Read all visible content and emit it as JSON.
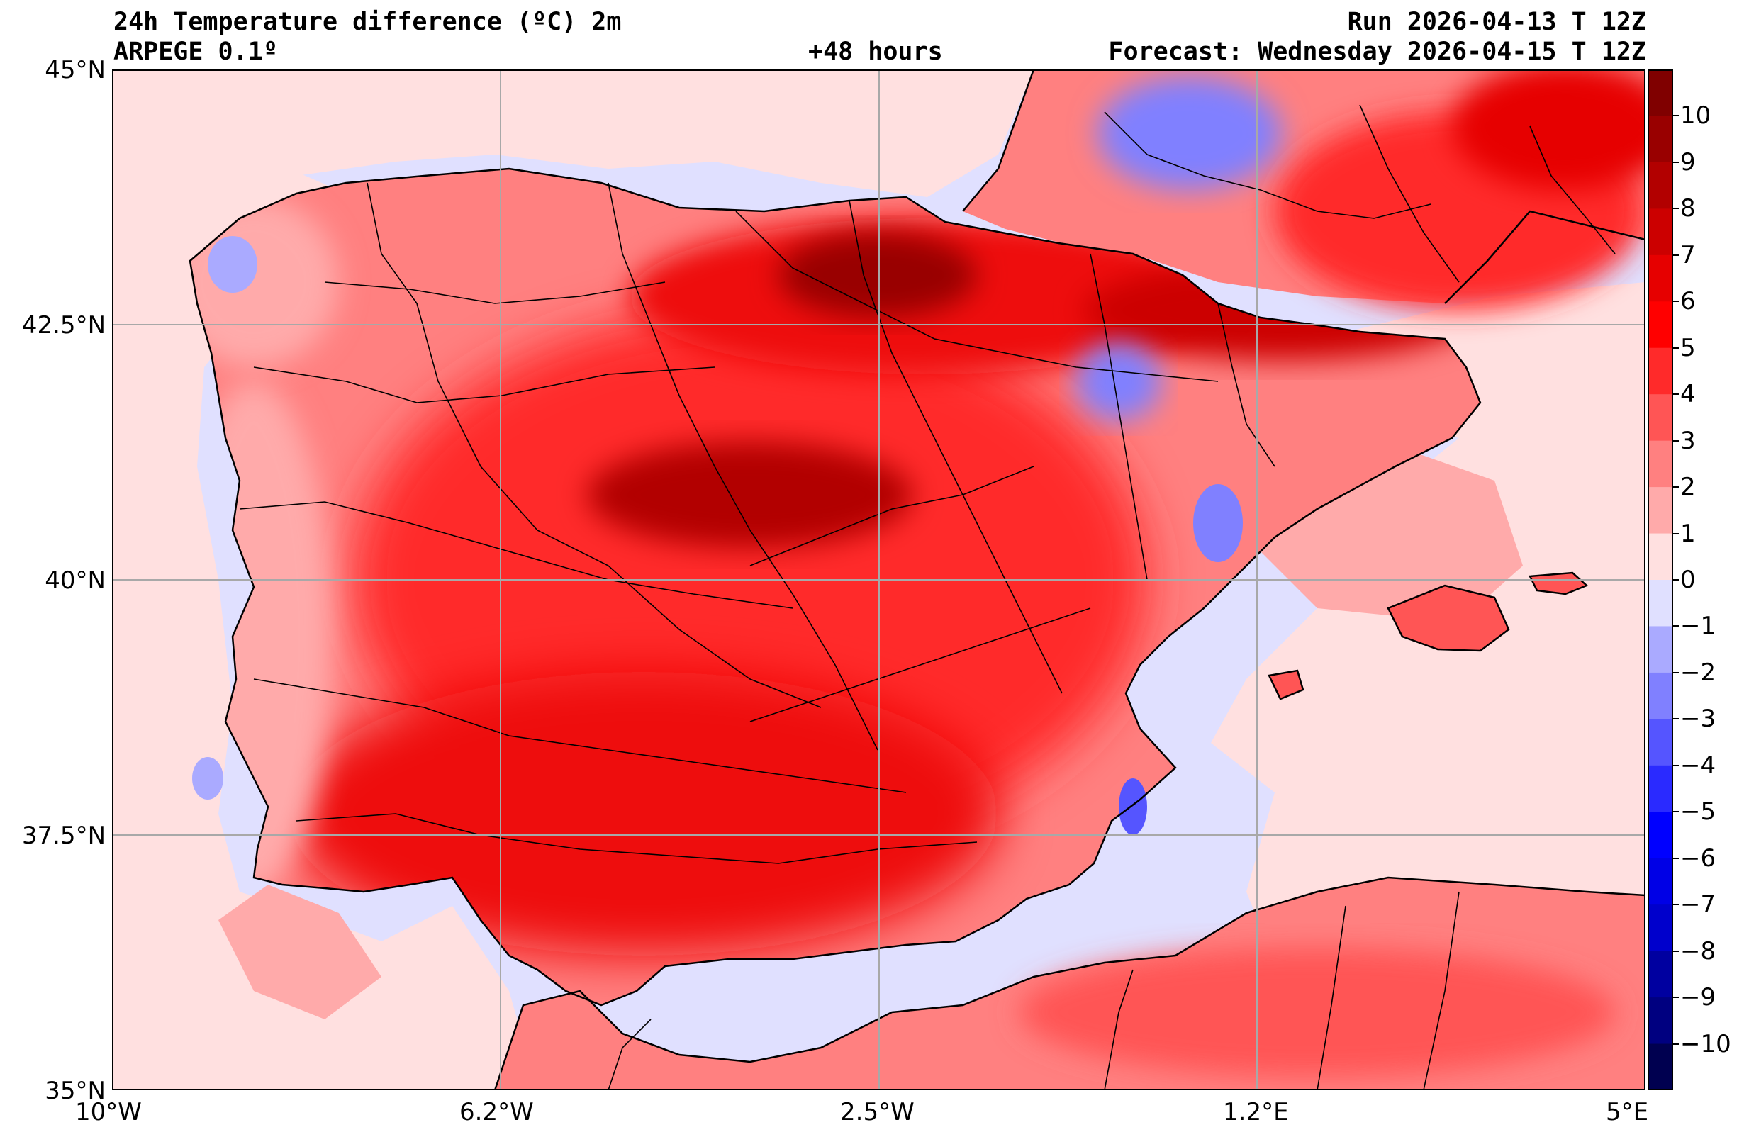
{
  "header": {
    "title": "24h Temperature difference (ºC) 2m",
    "model": "ARPEGE 0.1º",
    "lead_time": "+48 hours",
    "run": "Run 2026-04-13 T 12Z",
    "forecast": "Forecast: Wednesday 2026-04-15 T 12Z"
  },
  "map": {
    "lat_labels": [
      "45°N",
      "42.5°N",
      "40°N",
      "37.5°N",
      "35°N"
    ],
    "lon_labels": [
      "10°W",
      "6.2°W",
      "2.5°W",
      "1.2°E",
      "5°E"
    ],
    "lat_range": [
      35,
      45
    ],
    "lon_range": [
      -10,
      5
    ],
    "gridlines": true
  },
  "colorbar": {
    "labels": [
      "10",
      "9",
      "8",
      "7",
      "6",
      "5",
      "4",
      "3",
      "2",
      "1",
      "0",
      "−1",
      "−2",
      "−3",
      "−4",
      "−5",
      "−6",
      "−7",
      "−8",
      "−9",
      "−10"
    ],
    "colors": [
      "#800000",
      "#990000",
      "#b20000",
      "#cc0000",
      "#e60000",
      "#ff0000",
      "#ff2a2a",
      "#ff5555",
      "#ff8080",
      "#ffaaaa",
      "#ffe0e0",
      "#e0e0ff",
      "#aaaaff",
      "#8080ff",
      "#5555ff",
      "#2a2aff",
      "#0000ff",
      "#0000e6",
      "#0000cc",
      "#0000a0",
      "#000080",
      "#000050"
    ]
  },
  "colors": {
    "sea_background": "#e0e0ff",
    "land_base": "#ff5555",
    "land_hot": "#ee1111",
    "border": "#000000",
    "grid": "#a8a8a8"
  }
}
